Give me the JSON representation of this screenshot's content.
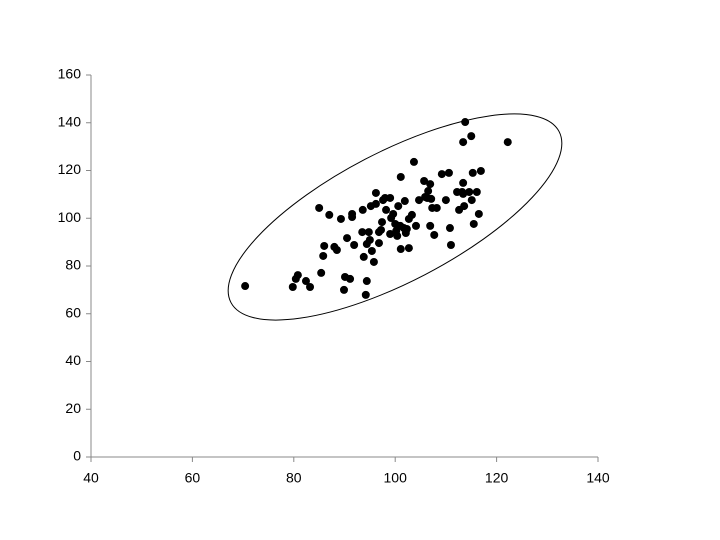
{
  "chart_data": {
    "type": "scatter",
    "color": "#000000",
    "grid": false,
    "xlim": [
      40,
      140
    ],
    "xticks": [
      40,
      60,
      80,
      100,
      120,
      140
    ],
    "ylim": [
      0,
      160
    ],
    "yticks": [
      0,
      20,
      40,
      60,
      80,
      100,
      120,
      140,
      160
    ],
    "x": [
      70.4,
      79.8,
      80.4,
      80.8,
      82.4,
      83.2,
      85.0,
      85.4,
      85.8,
      86.0,
      87.0,
      88.0,
      88.5,
      89.3,
      89.9,
      90.1,
      90.5,
      91.1,
      91.5,
      91.5,
      91.9,
      93.5,
      93.6,
      93.8,
      94.2,
      94.4,
      94.4,
      94.8,
      95.0,
      95.2,
      95.4,
      95.8,
      96.2,
      96.2,
      96.8,
      96.8,
      97.2,
      97.4,
      97.6,
      98.0,
      98.2,
      99.0,
      99.0,
      99.2,
      99.6,
      100.0,
      100.2,
      100.4,
      100.6,
      100.6,
      101.0,
      101.1,
      101.1,
      101.7,
      101.9,
      102.1,
      102.3,
      102.7,
      102.7,
      103.3,
      103.7,
      104.1,
      104.7,
      105.7,
      105.9,
      106.3,
      106.5,
      106.9,
      106.9,
      107.1,
      107.3,
      107.7,
      108.2,
      109.2,
      110.0,
      110.6,
      110.8,
      111.0,
      112.2,
      112.6,
      113.2,
      113.4,
      113.4,
      113.4,
      113.6,
      113.8,
      114.6,
      115.0,
      115.1,
      115.3,
      115.5,
      116.1,
      116.5,
      116.9,
      122.2
    ],
    "y": [
      71.6,
      71.2,
      74.6,
      76.2,
      73.7,
      71.2,
      104.3,
      77.1,
      84.2,
      88.4,
      101.4,
      88.0,
      86.7,
      99.7,
      70.0,
      75.4,
      91.7,
      74.6,
      100.5,
      101.8,
      88.8,
      94.2,
      103.5,
      83.8,
      67.9,
      73.7,
      89.2,
      94.2,
      90.9,
      105.1,
      86.3,
      81.7,
      110.6,
      106.0,
      89.6,
      94.2,
      95.1,
      98.4,
      107.6,
      108.5,
      103.5,
      108.5,
      93.4,
      100.1,
      101.8,
      97.6,
      94.7,
      92.6,
      96.8,
      105.1,
      96.8,
      117.3,
      87.1,
      95.9,
      107.2,
      93.8,
      95.5,
      87.5,
      99.7,
      101.4,
      123.6,
      96.8,
      107.6,
      115.6,
      108.9,
      108.5,
      111.4,
      114.3,
      96.8,
      108.1,
      104.3,
      93.0,
      104.3,
      118.5,
      107.6,
      119.0,
      95.9,
      88.8,
      111.0,
      103.5,
      111.0,
      110.2,
      131.9,
      114.8,
      105.1,
      140.3,
      111.0,
      134.4,
      107.6,
      119.0,
      97.6,
      111.0,
      101.8,
      119.8,
      131.9
    ]
  }
}
